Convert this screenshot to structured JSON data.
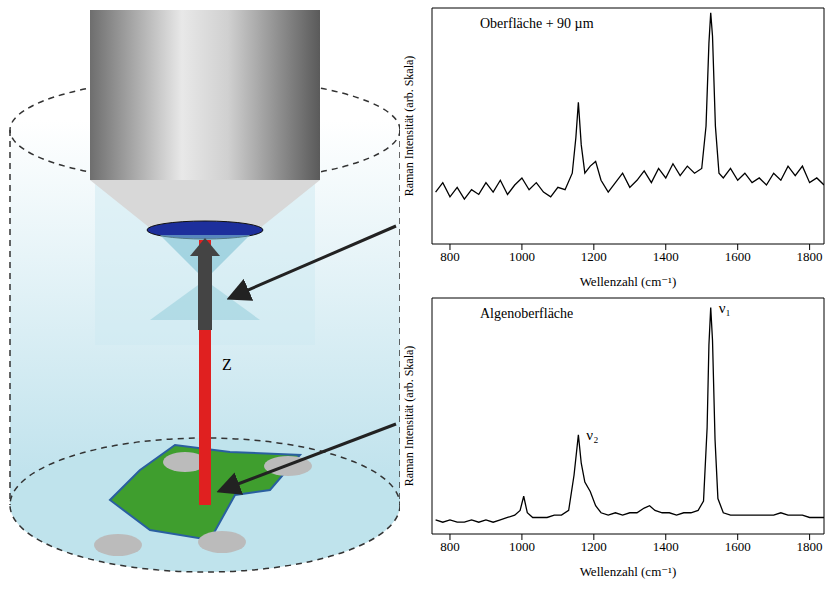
{
  "diagram": {
    "label": "Z"
  },
  "chart_data": [
    {
      "type": "line",
      "title": "Oberfläche + 90 µm",
      "x_label": "Wellenzahl (cm⁻¹)",
      "y_label": "Raman Intensität (arb. Skala)",
      "color": "#000000",
      "xlim": [
        750,
        1840
      ],
      "xticks": [
        800,
        1000,
        1200,
        1400,
        1600,
        1800
      ],
      "ylim": [
        0,
        100
      ],
      "tick_labels": "x",
      "x": [
        760,
        780,
        800,
        820,
        840,
        860,
        880,
        900,
        920,
        940,
        960,
        980,
        1000,
        1020,
        1040,
        1060,
        1080,
        1100,
        1120,
        1140,
        1150,
        1157,
        1165,
        1175,
        1190,
        1205,
        1220,
        1240,
        1260,
        1280,
        1300,
        1320,
        1340,
        1360,
        1380,
        1400,
        1420,
        1440,
        1460,
        1480,
        1500,
        1512,
        1520,
        1525,
        1530,
        1538,
        1548,
        1560,
        1580,
        1600,
        1620,
        1640,
        1660,
        1680,
        1700,
        1720,
        1740,
        1760,
        1780,
        1800,
        1820,
        1840
      ],
      "values": [
        22,
        26,
        20,
        24,
        19,
        23,
        21,
        26,
        22,
        27,
        21,
        25,
        28,
        23,
        26,
        22,
        20,
        24,
        23,
        30,
        45,
        60,
        42,
        30,
        33,
        35,
        27,
        22,
        26,
        30,
        24,
        27,
        31,
        26,
        32,
        28,
        34,
        29,
        33,
        30,
        32,
        50,
        85,
        98,
        88,
        50,
        30,
        28,
        32,
        27,
        30,
        26,
        28,
        25,
        30,
        27,
        33,
        29,
        33,
        26,
        28,
        25
      ]
    },
    {
      "type": "line",
      "title": "Algenoberfläche",
      "x_label": "Wellenzahl (cm⁻¹)",
      "y_label": "Raman Intensität (arb. Skala)",
      "color": "#000000",
      "xlim": [
        750,
        1840
      ],
      "xticks": [
        800,
        1000,
        1200,
        1400,
        1600,
        1800
      ],
      "ylim": [
        0,
        100
      ],
      "tick_labels": "x",
      "annotations": [
        {
          "text": "ν₁",
          "x": 1525
        },
        {
          "text": "ν₂",
          "x": 1157
        }
      ],
      "x": [
        760,
        780,
        800,
        820,
        840,
        860,
        880,
        900,
        920,
        940,
        960,
        980,
        995,
        1005,
        1015,
        1030,
        1050,
        1070,
        1090,
        1110,
        1130,
        1145,
        1157,
        1165,
        1175,
        1190,
        1205,
        1220,
        1240,
        1260,
        1280,
        1300,
        1320,
        1340,
        1355,
        1370,
        1390,
        1410,
        1430,
        1450,
        1470,
        1490,
        1505,
        1515,
        1520,
        1525,
        1530,
        1537,
        1545,
        1560,
        1580,
        1600,
        1620,
        1640,
        1660,
        1680,
        1700,
        1720,
        1740,
        1760,
        1780,
        1800,
        1820,
        1840
      ],
      "values": [
        6,
        5,
        6,
        5,
        5,
        6,
        5,
        6,
        5,
        6,
        7,
        8,
        10,
        16,
        9,
        7,
        7,
        7,
        8,
        8,
        10,
        25,
        42,
        30,
        22,
        18,
        12,
        9,
        8,
        9,
        8,
        9,
        9,
        11,
        12,
        10,
        9,
        9,
        8,
        9,
        9,
        10,
        14,
        45,
        80,
        96,
        82,
        40,
        15,
        9,
        8,
        8,
        8,
        8,
        8,
        8,
        8,
        9,
        8,
        8,
        8,
        7,
        7,
        7
      ]
    }
  ]
}
